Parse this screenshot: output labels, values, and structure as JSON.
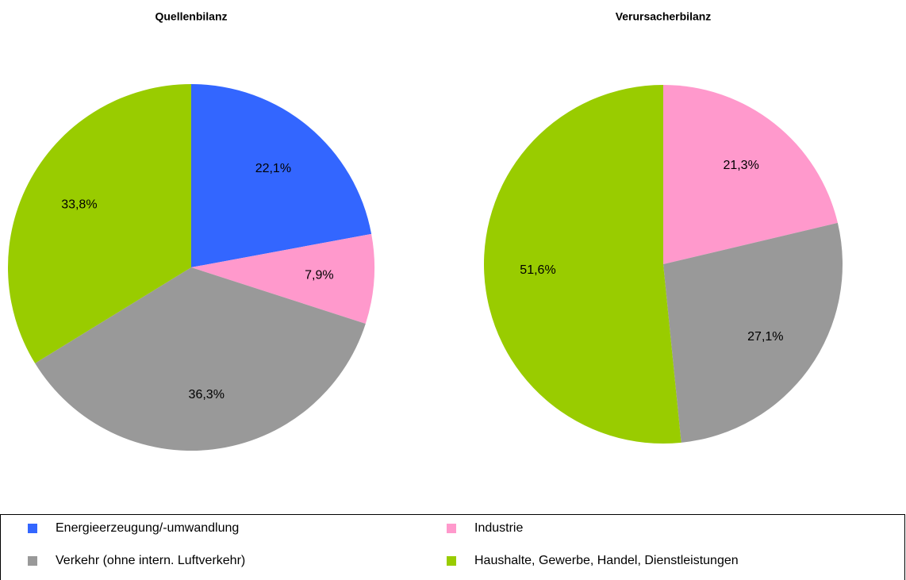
{
  "chart_data": [
    {
      "type": "pie",
      "title": "Quellenbilanz",
      "categories": [
        "Energieerzeugung/-umwandlung",
        "Industrie",
        "Verkehr (ohne intern. Luftverkehr)",
        "Haushalte, Gewerbe, Handel, Dienstleistungen"
      ],
      "values": [
        22.1,
        7.9,
        36.3,
        33.8
      ],
      "value_labels": [
        "22,1%",
        "7,9%",
        "36,3%",
        "33,8%"
      ],
      "colors": [
        "#3366ff",
        "#ff99cc",
        "#999999",
        "#99cc00"
      ]
    },
    {
      "type": "pie",
      "title": "Verursacherbilanz",
      "categories": [
        "Industrie",
        "Verkehr (ohne intern. Luftverkehr)",
        "Haushalte, Gewerbe, Handel, Dienstleistungen"
      ],
      "values": [
        21.3,
        27.1,
        51.6
      ],
      "value_labels": [
        "21,3%",
        "27,1%",
        "51,6%"
      ],
      "colors": [
        "#ff99cc",
        "#999999",
        "#99cc00"
      ]
    }
  ],
  "legend": {
    "items": [
      {
        "name": "Energieerzeugung/-umwandlung",
        "color": "#3366ff"
      },
      {
        "name": "Industrie",
        "color": "#ff99cc"
      },
      {
        "name": "Verkehr (ohne intern. Luftverkehr)",
        "color": "#999999"
      },
      {
        "name": "Haushalte, Gewerbe, Handel, Dienstleistungen",
        "color": "#99cc00"
      }
    ]
  }
}
